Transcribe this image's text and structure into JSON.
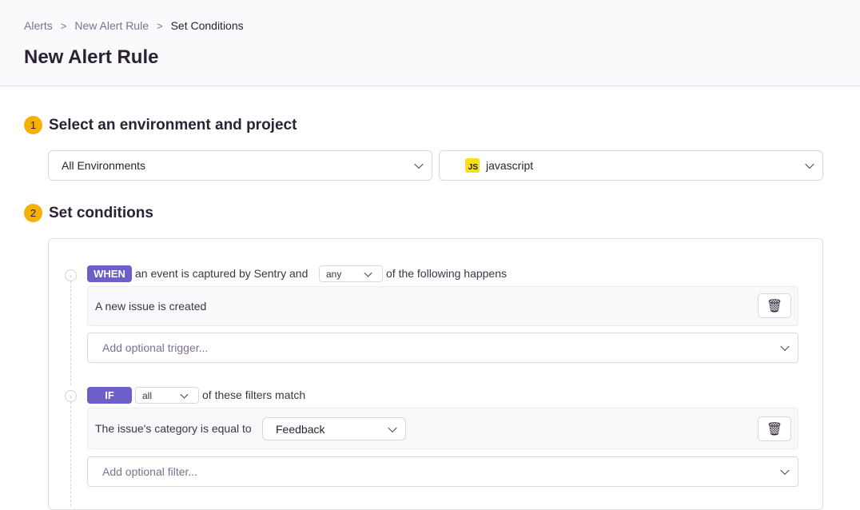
{
  "breadcrumbs": [
    "Alerts",
    "New Alert Rule",
    "Set Conditions"
  ],
  "title": "New Alert Rule",
  "step1": {
    "number": "1",
    "title": "Select an environment and project",
    "environment": "All Environments",
    "project": "javascript",
    "project_icon": "JS"
  },
  "step2": {
    "number": "2",
    "title": "Set conditions"
  },
  "when": {
    "badge": "WHEN",
    "prefix": "an event is captured by Sentry and",
    "match": "any",
    "suffix": "of the following happens",
    "condition": "A new issue is created",
    "add_placeholder": "Add optional trigger..."
  },
  "if": {
    "badge": "IF",
    "match": "all",
    "suffix": "of these filters match",
    "filter_label": "The issue's category is equal to",
    "filter_value": "Feedback",
    "add_placeholder": "Add optional filter..."
  },
  "colors": {
    "accent": "#6c5fc7",
    "step": "#f5b000"
  }
}
